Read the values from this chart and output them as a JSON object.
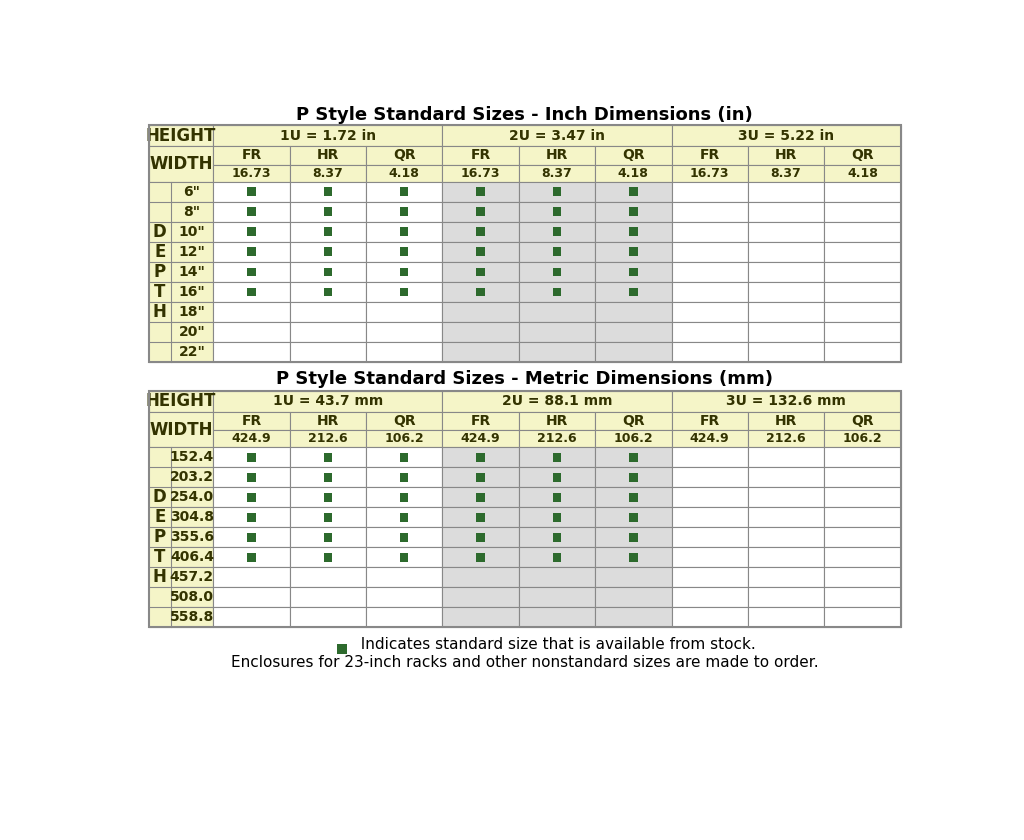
{
  "title1": "P Style Standard Sizes - Inch Dimensions (in)",
  "title2": "P Style Standard Sizes - Metric Dimensions (mm)",
  "legend_text1": "  Indicates standard size that is available from stock.",
  "legend_text2": "Enclosures for 23-inch racks and other nonstandard sizes are made to order.",
  "header_bg": "#f5f5c8",
  "cell_bg_white": "#ffffff",
  "cell_bg_gray": "#dcdcdc",
  "border_color": "#888888",
  "green_color": "#2d6a2d",
  "text_color": "#333300",
  "table1": {
    "height_label": "HEIGHT",
    "width_label": "WIDTH",
    "u_labels": [
      "1U = 1.72 in",
      "2U = 3.47 in",
      "3U = 5.22 in"
    ],
    "sub_headers": [
      "FR",
      "HR",
      "QR",
      "FR",
      "HR",
      "QR",
      "FR",
      "HR",
      "QR"
    ],
    "width_values": [
      "16.73",
      "8.37",
      "4.18",
      "16.73",
      "8.37",
      "4.18",
      "16.73",
      "8.37",
      "4.18"
    ],
    "depth_letters": [
      "",
      "",
      "D",
      "E",
      "P",
      "T",
      "H",
      "",
      ""
    ],
    "rows": [
      {
        "label": "6\"",
        "cells": [
          1,
          1,
          1,
          1,
          1,
          1,
          0,
          0,
          0
        ]
      },
      {
        "label": "8\"",
        "cells": [
          1,
          1,
          1,
          1,
          1,
          1,
          0,
          0,
          0
        ]
      },
      {
        "label": "10\"",
        "cells": [
          1,
          1,
          1,
          1,
          1,
          1,
          0,
          0,
          0
        ]
      },
      {
        "label": "12\"",
        "cells": [
          1,
          1,
          1,
          1,
          1,
          1,
          0,
          0,
          0
        ]
      },
      {
        "label": "14\"",
        "cells": [
          1,
          1,
          1,
          1,
          1,
          1,
          0,
          0,
          0
        ]
      },
      {
        "label": "16\"",
        "cells": [
          1,
          1,
          1,
          1,
          1,
          1,
          0,
          0,
          0
        ]
      },
      {
        "label": "18\"",
        "cells": [
          0,
          0,
          0,
          0,
          0,
          0,
          0,
          0,
          0
        ]
      },
      {
        "label": "20\"",
        "cells": [
          0,
          0,
          0,
          0,
          0,
          0,
          0,
          0,
          0
        ]
      },
      {
        "label": "22\"",
        "cells": [
          0,
          0,
          0,
          0,
          0,
          0,
          0,
          0,
          0
        ]
      }
    ]
  },
  "table2": {
    "height_label": "HEIGHT",
    "width_label": "WIDTH",
    "u_labels": [
      "1U = 43.7 mm",
      "2U = 88.1 mm",
      "3U = 132.6 mm"
    ],
    "sub_headers": [
      "FR",
      "HR",
      "QR",
      "FR",
      "HR",
      "QR",
      "FR",
      "HR",
      "QR"
    ],
    "width_values": [
      "424.9",
      "212.6",
      "106.2",
      "424.9",
      "212.6",
      "106.2",
      "424.9",
      "212.6",
      "106.2"
    ],
    "depth_letters": [
      "",
      "",
      "D",
      "E",
      "P",
      "T",
      "H",
      "",
      ""
    ],
    "rows": [
      {
        "label": "152.4",
        "cells": [
          1,
          1,
          1,
          1,
          1,
          1,
          0,
          0,
          0
        ]
      },
      {
        "label": "203.2",
        "cells": [
          1,
          1,
          1,
          1,
          1,
          1,
          0,
          0,
          0
        ]
      },
      {
        "label": "254.0",
        "cells": [
          1,
          1,
          1,
          1,
          1,
          1,
          0,
          0,
          0
        ]
      },
      {
        "label": "304.8",
        "cells": [
          1,
          1,
          1,
          1,
          1,
          1,
          0,
          0,
          0
        ]
      },
      {
        "label": "355.6",
        "cells": [
          1,
          1,
          1,
          1,
          1,
          1,
          0,
          0,
          0
        ]
      },
      {
        "label": "406.4",
        "cells": [
          1,
          1,
          1,
          1,
          1,
          1,
          0,
          0,
          0
        ]
      },
      {
        "label": "457.2",
        "cells": [
          0,
          0,
          0,
          0,
          0,
          0,
          0,
          0,
          0
        ]
      },
      {
        "label": "508.0",
        "cells": [
          0,
          0,
          0,
          0,
          0,
          0,
          0,
          0,
          0
        ]
      },
      {
        "label": "558.8",
        "cells": [
          0,
          0,
          0,
          0,
          0,
          0,
          0,
          0,
          0
        ]
      }
    ]
  }
}
